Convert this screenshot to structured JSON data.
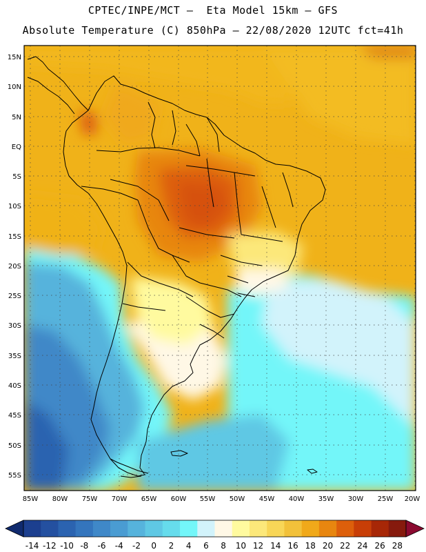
{
  "header": {
    "title_line1": "CPTEC/INPE/MCT –  Eta Model 15km – GFS",
    "title_line2": "Absolute Temperature (C) 850hPa – 22/08/2020 12UTC fct=41h"
  },
  "map": {
    "lat_ticks": [
      "15N",
      "10N",
      "5N",
      "EQ",
      "5S",
      "10S",
      "15S",
      "20S",
      "25S",
      "30S",
      "35S",
      "40S",
      "45S",
      "50S",
      "55S"
    ],
    "lon_ticks": [
      "85W",
      "80W",
      "75W",
      "70W",
      "65W",
      "60W",
      "55W",
      "50W",
      "45W",
      "40W",
      "35W",
      "30W",
      "25W",
      "20W"
    ],
    "lat_values": [
      15,
      10,
      5,
      0,
      -5,
      -10,
      -15,
      -20,
      -25,
      -30,
      -35,
      -40,
      -45,
      -50,
      -55
    ],
    "lon_values": [
      -85,
      -80,
      -75,
      -70,
      -65,
      -60,
      -55,
      -50,
      -45,
      -40,
      -35,
      -30,
      -25,
      -20
    ],
    "extent": {
      "lon_min": -85.5,
      "lon_max": -20,
      "lat_min": -58,
      "lat_max": 16.5
    }
  },
  "colorbar": {
    "labels": [
      "-14",
      "-12",
      "-10",
      "-8",
      "-6",
      "-4",
      "-2",
      "0",
      "2",
      "4",
      "6",
      "8",
      "10",
      "12",
      "14",
      "16",
      "18",
      "20",
      "22",
      "24",
      "26",
      "28"
    ],
    "colors": [
      "#1c3f8f",
      "#2450a0",
      "#2b63b0",
      "#3475bd",
      "#3f88c8",
      "#4a9cd2",
      "#56b3dc",
      "#5fc8e4",
      "#66dcec",
      "#73f6f9",
      "#d2f3fb",
      "#fff8e6",
      "#fffa9f",
      "#fce87a",
      "#f8d657",
      "#f2c13a",
      "#f0a91a",
      "#e8860f",
      "#dd5f0b",
      "#c83e07",
      "#a72707",
      "#861a0d"
    ],
    "low_end_color": "#102a6e",
    "high_end_color": "#8b0a30"
  }
}
